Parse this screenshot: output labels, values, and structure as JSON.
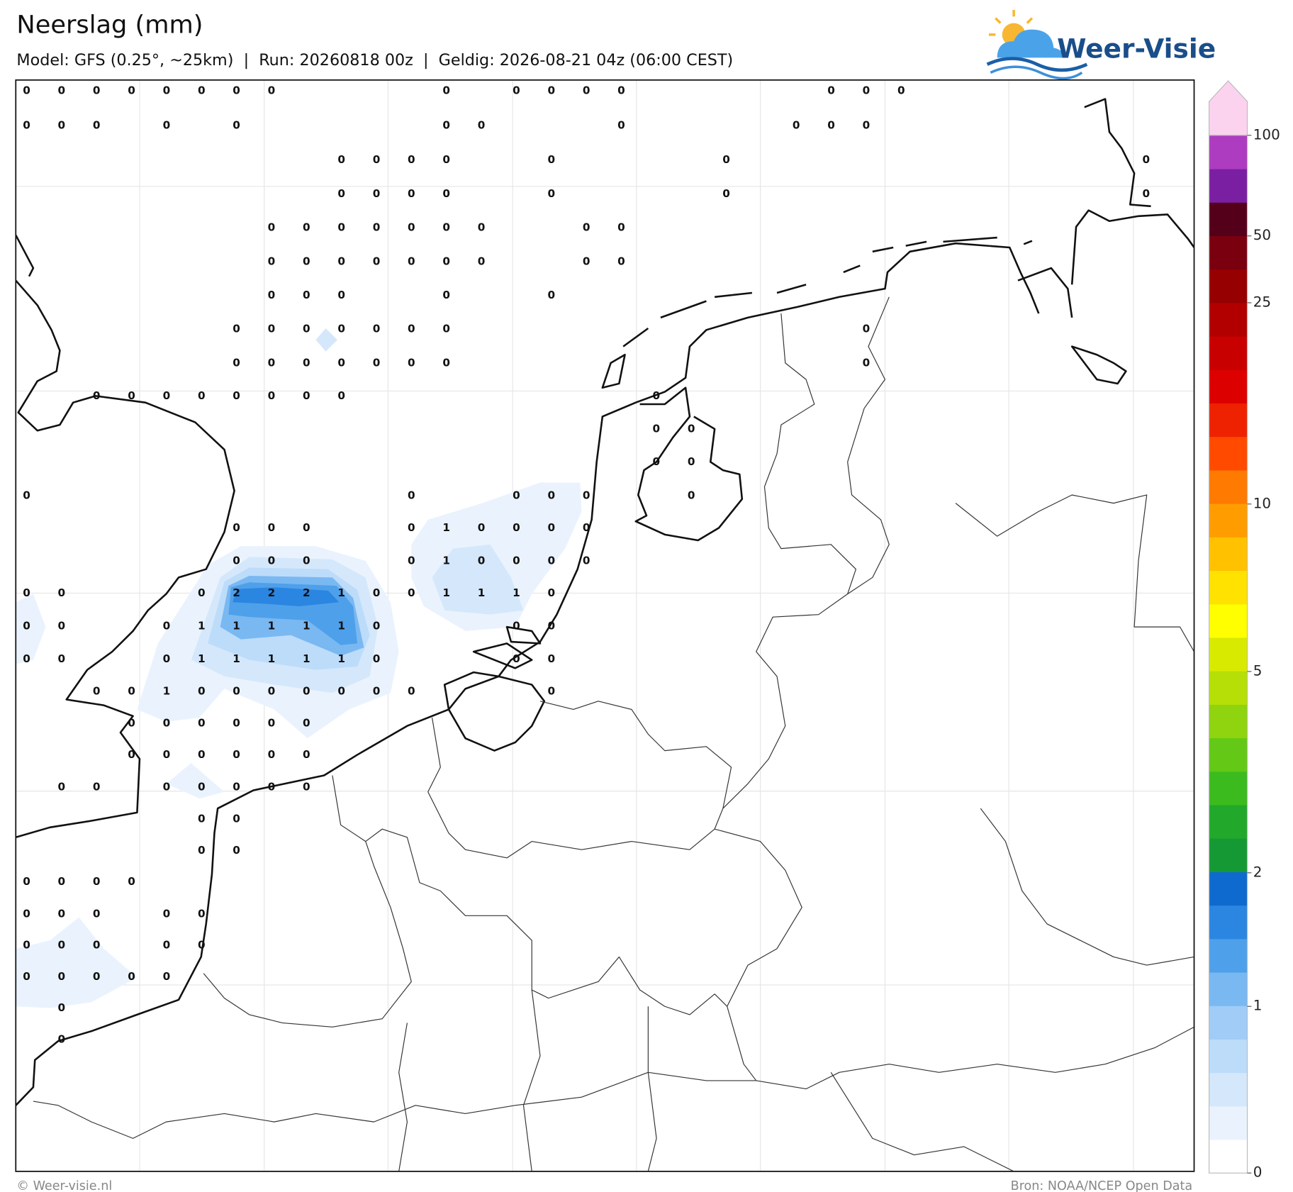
{
  "header": {
    "title": "Neerslag (mm)",
    "subtitle": "Model: GFS (0.25°, ~25km)  |  Run: 20260818 00z  |  Geldig: 2026-08-21 04z (06:00 CEST)"
  },
  "logo": {
    "name": "Weer-Visie"
  },
  "legend": {
    "ticks": [
      0,
      1,
      2,
      5,
      10,
      25,
      50,
      100
    ]
  },
  "grid_values": [
    [
      0,
      0,
      0,
      0,
      0,
      0,
      0,
      0,
      null,
      null,
      null,
      null,
      0,
      null,
      0,
      0,
      0,
      0,
      null,
      null,
      null,
      null,
      null,
      0,
      0,
      0
    ],
    [
      0,
      0,
      0,
      null,
      0,
      null,
      0,
      null,
      null,
      null,
      null,
      null,
      0,
      0,
      null,
      null,
      null,
      0,
      null,
      null,
      null,
      null,
      0,
      0,
      0
    ],
    [
      null,
      null,
      null,
      null,
      null,
      null,
      null,
      null,
      null,
      0,
      0,
      0,
      0,
      null,
      null,
      0,
      null,
      null,
      null,
      null,
      0,
      null,
      null,
      null,
      null,
      null,
      null,
      null,
      null,
      null,
      null,
      null,
      0
    ],
    [
      null,
      null,
      null,
      null,
      null,
      null,
      null,
      null,
      null,
      0,
      0,
      0,
      0,
      null,
      null,
      0,
      null,
      null,
      null,
      null,
      0,
      null,
      null,
      null,
      null,
      null,
      null,
      null,
      null,
      null,
      null,
      null,
      0
    ],
    [
      null,
      null,
      null,
      null,
      null,
      null,
      null,
      0,
      0,
      0,
      0,
      0,
      0,
      0,
      null,
      null,
      0,
      0
    ],
    [
      null,
      null,
      null,
      null,
      null,
      null,
      null,
      0,
      0,
      0,
      0,
      0,
      0,
      0,
      null,
      null,
      0,
      0
    ],
    [
      null,
      null,
      null,
      null,
      null,
      null,
      null,
      0,
      0,
      0,
      null,
      null,
      0,
      null,
      null,
      0
    ],
    [
      null,
      null,
      null,
      null,
      null,
      null,
      0,
      0,
      0,
      0,
      0,
      0,
      0,
      null,
      null,
      null,
      null,
      null,
      null,
      null,
      null,
      null,
      null,
      null,
      0
    ],
    [
      null,
      null,
      null,
      null,
      null,
      null,
      0,
      0,
      0,
      0,
      0,
      0,
      0,
      null,
      null,
      null,
      null,
      null,
      null,
      null,
      null,
      null,
      null,
      null,
      0
    ],
    [
      null,
      null,
      0,
      0,
      0,
      0,
      0,
      0,
      0,
      0,
      null,
      null,
      null,
      null,
      null,
      null,
      null,
      null,
      0
    ],
    [
      null,
      null,
      null,
      null,
      null,
      null,
      null,
      null,
      null,
      null,
      null,
      null,
      null,
      null,
      null,
      null,
      null,
      null,
      0,
      0
    ],
    [
      null,
      null,
      null,
      null,
      null,
      null,
      null,
      null,
      null,
      null,
      null,
      null,
      null,
      null,
      null,
      null,
      null,
      null,
      0,
      0
    ],
    [
      0,
      null,
      null,
      null,
      null,
      null,
      null,
      null,
      null,
      null,
      null,
      0,
      null,
      null,
      0,
      0,
      0,
      null,
      null,
      0
    ],
    [
      null,
      null,
      null,
      null,
      null,
      null,
      0,
      0,
      0,
      null,
      null,
      0,
      1,
      0,
      0,
      0,
      0
    ],
    [
      null,
      null,
      null,
      null,
      null,
      null,
      0,
      0,
      0,
      null,
      null,
      0,
      1,
      0,
      0,
      0,
      0
    ],
    [
      0,
      0,
      null,
      null,
      null,
      0,
      2,
      2,
      2,
      1,
      0,
      0,
      1,
      1,
      1,
      0
    ],
    [
      0,
      0,
      null,
      null,
      0,
      1,
      1,
      1,
      1,
      1,
      0,
      null,
      null,
      null,
      0,
      0
    ],
    [
      0,
      0,
      null,
      null,
      0,
      1,
      1,
      1,
      1,
      1,
      0,
      null,
      null,
      null,
      0,
      0
    ],
    [
      null,
      null,
      0,
      0,
      1,
      0,
      0,
      0,
      0,
      0,
      0,
      0,
      null,
      null,
      null,
      0
    ],
    [
      null,
      null,
      null,
      0,
      0,
      0,
      0,
      0,
      0
    ],
    [
      null,
      null,
      null,
      0,
      0,
      0,
      0,
      0,
      0
    ],
    [
      null,
      0,
      0,
      null,
      0,
      0,
      0,
      0,
      0
    ],
    [
      null,
      null,
      null,
      null,
      null,
      0,
      0
    ],
    [
      null,
      null,
      null,
      null,
      null,
      0,
      0
    ],
    [
      0,
      0,
      0,
      0
    ],
    [
      0,
      0,
      0,
      null,
      0,
      0
    ],
    [
      0,
      0,
      0,
      null,
      0,
      0
    ],
    [
      0,
      0,
      0,
      0,
      0
    ],
    [
      null,
      0
    ],
    [
      null,
      0
    ]
  ],
  "footer": {
    "credit": "© Weer-visie.nl",
    "source": "Bron: NOAA/NCEP Open Data"
  }
}
